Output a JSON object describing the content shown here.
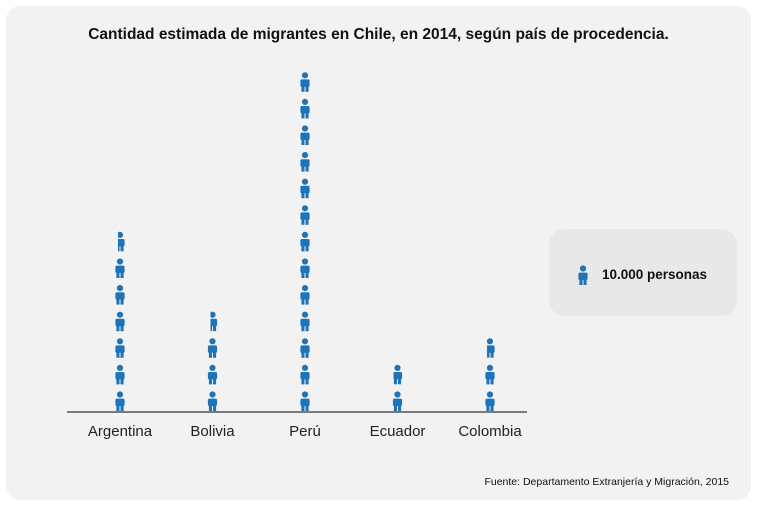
{
  "title": "Cantidad estimada de migrantes en Chile, en 2014, según país de procedencia.",
  "source": "Fuente: Departamento Extranjería y Migración, 2015",
  "legend": {
    "label": "10.000 personas",
    "icon": "person-icon"
  },
  "colors": {
    "icon": "#1f74b7",
    "axis": "#333333",
    "background": "#f2f2f2"
  },
  "chart_data": {
    "type": "bar",
    "title": "Cantidad estimada de migrantes en Chile, en 2014, según país de procedencia.",
    "categories": [
      "Argentina",
      "Bolivia",
      "Perú",
      "Ecuador",
      "Colombia"
    ],
    "values": [
      67000,
      37000,
      130000,
      19000,
      28000
    ],
    "unit_per_icon": 10000,
    "unit_label": "10.000 personas",
    "xlabel": "",
    "ylabel": "",
    "grid": false,
    "legend_position": "right"
  }
}
